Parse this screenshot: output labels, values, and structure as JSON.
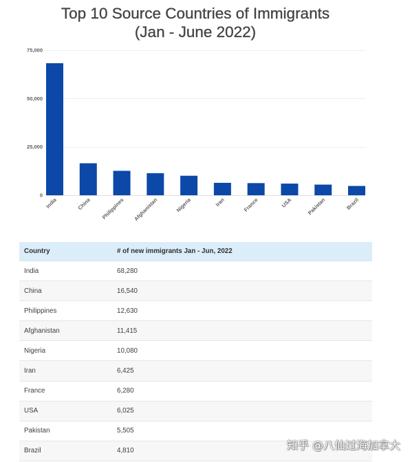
{
  "chart_data": {
    "type": "bar",
    "title": "Top 10 Source Countries of Immigrants",
    "subtitle": "(Jan - June 2022)",
    "categories": [
      "India",
      "China",
      "Philippines",
      "Afghanistan",
      "Nigeria",
      "Iran",
      "France",
      "USA",
      "Pakistan",
      "Brazil"
    ],
    "values": [
      68280,
      16540,
      12630,
      11415,
      10080,
      6425,
      6280,
      6025,
      5505,
      4810
    ],
    "ylim": [
      0,
      75000
    ],
    "yticks": [
      0,
      25000,
      50000,
      75000
    ],
    "ytick_labels": [
      "0",
      "25,000",
      "50,000",
      "75,000"
    ],
    "grid": true,
    "bar_color": "#0b48a8"
  },
  "table": {
    "headers": [
      "Country",
      "# of new immigrants Jan - Jun, 2022"
    ],
    "rows": [
      [
        "India",
        "68,280"
      ],
      [
        "China",
        "16,540"
      ],
      [
        "Philippines",
        "12,630"
      ],
      [
        "Afghanistan",
        "11,415"
      ],
      [
        "Nigeria",
        "10,080"
      ],
      [
        "Iran",
        "6,425"
      ],
      [
        "France",
        "6,280"
      ],
      [
        "USA",
        "6,025"
      ],
      [
        "Pakistan",
        "5,505"
      ],
      [
        "Brazil",
        "4,810"
      ]
    ]
  },
  "colors": {
    "header_bg": "#dbedf8",
    "alt_row_bg": "#f7f7f7"
  },
  "watermark": "知乎 @八仙过海加拿大"
}
